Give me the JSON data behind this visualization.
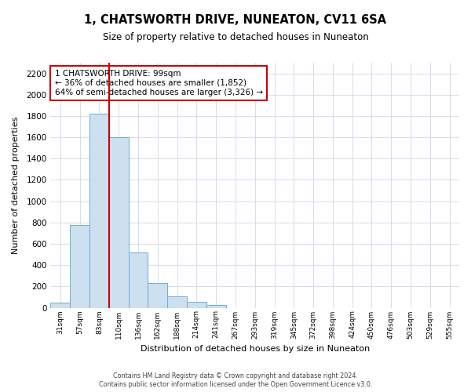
{
  "title": "1, CHATSWORTH DRIVE, NUNEATON, CV11 6SA",
  "subtitle": "Size of property relative to detached houses in Nuneaton",
  "xlabel": "Distribution of detached houses by size in Nuneaton",
  "ylabel": "Number of detached properties",
  "bin_labels": [
    "31sqm",
    "57sqm",
    "83sqm",
    "110sqm",
    "136sqm",
    "162sqm",
    "188sqm",
    "214sqm",
    "241sqm",
    "267sqm",
    "293sqm",
    "319sqm",
    "345sqm",
    "372sqm",
    "398sqm",
    "424sqm",
    "450sqm",
    "476sqm",
    "503sqm",
    "529sqm",
    "555sqm"
  ],
  "bar_values": [
    50,
    775,
    1820,
    1600,
    520,
    230,
    105,
    55,
    25,
    0,
    0,
    0,
    0,
    0,
    0,
    0,
    0,
    0,
    0,
    0,
    0
  ],
  "bar_color": "#cce0f0",
  "bar_edge_color": "#6aaed6",
  "red_line_bin": 2,
  "annotation_title": "1 CHATSWORTH DRIVE: 99sqm",
  "annotation_line1": "← 36% of detached houses are smaller (1,852)",
  "annotation_line2": "64% of semi-detached houses are larger (3,326) →",
  "annotation_box_color": "#ffffff",
  "annotation_box_edge": "#cc0000",
  "red_line_color": "#cc0000",
  "ylim": [
    0,
    2300
  ],
  "yticks": [
    0,
    200,
    400,
    600,
    800,
    1000,
    1200,
    1400,
    1600,
    1800,
    2000,
    2200
  ],
  "footer_line1": "Contains HM Land Registry data © Crown copyright and database right 2024.",
  "footer_line2": "Contains public sector information licensed under the Open Government Licence v3.0.",
  "bg_color": "#ffffff",
  "grid_color": "#ccd9e8"
}
